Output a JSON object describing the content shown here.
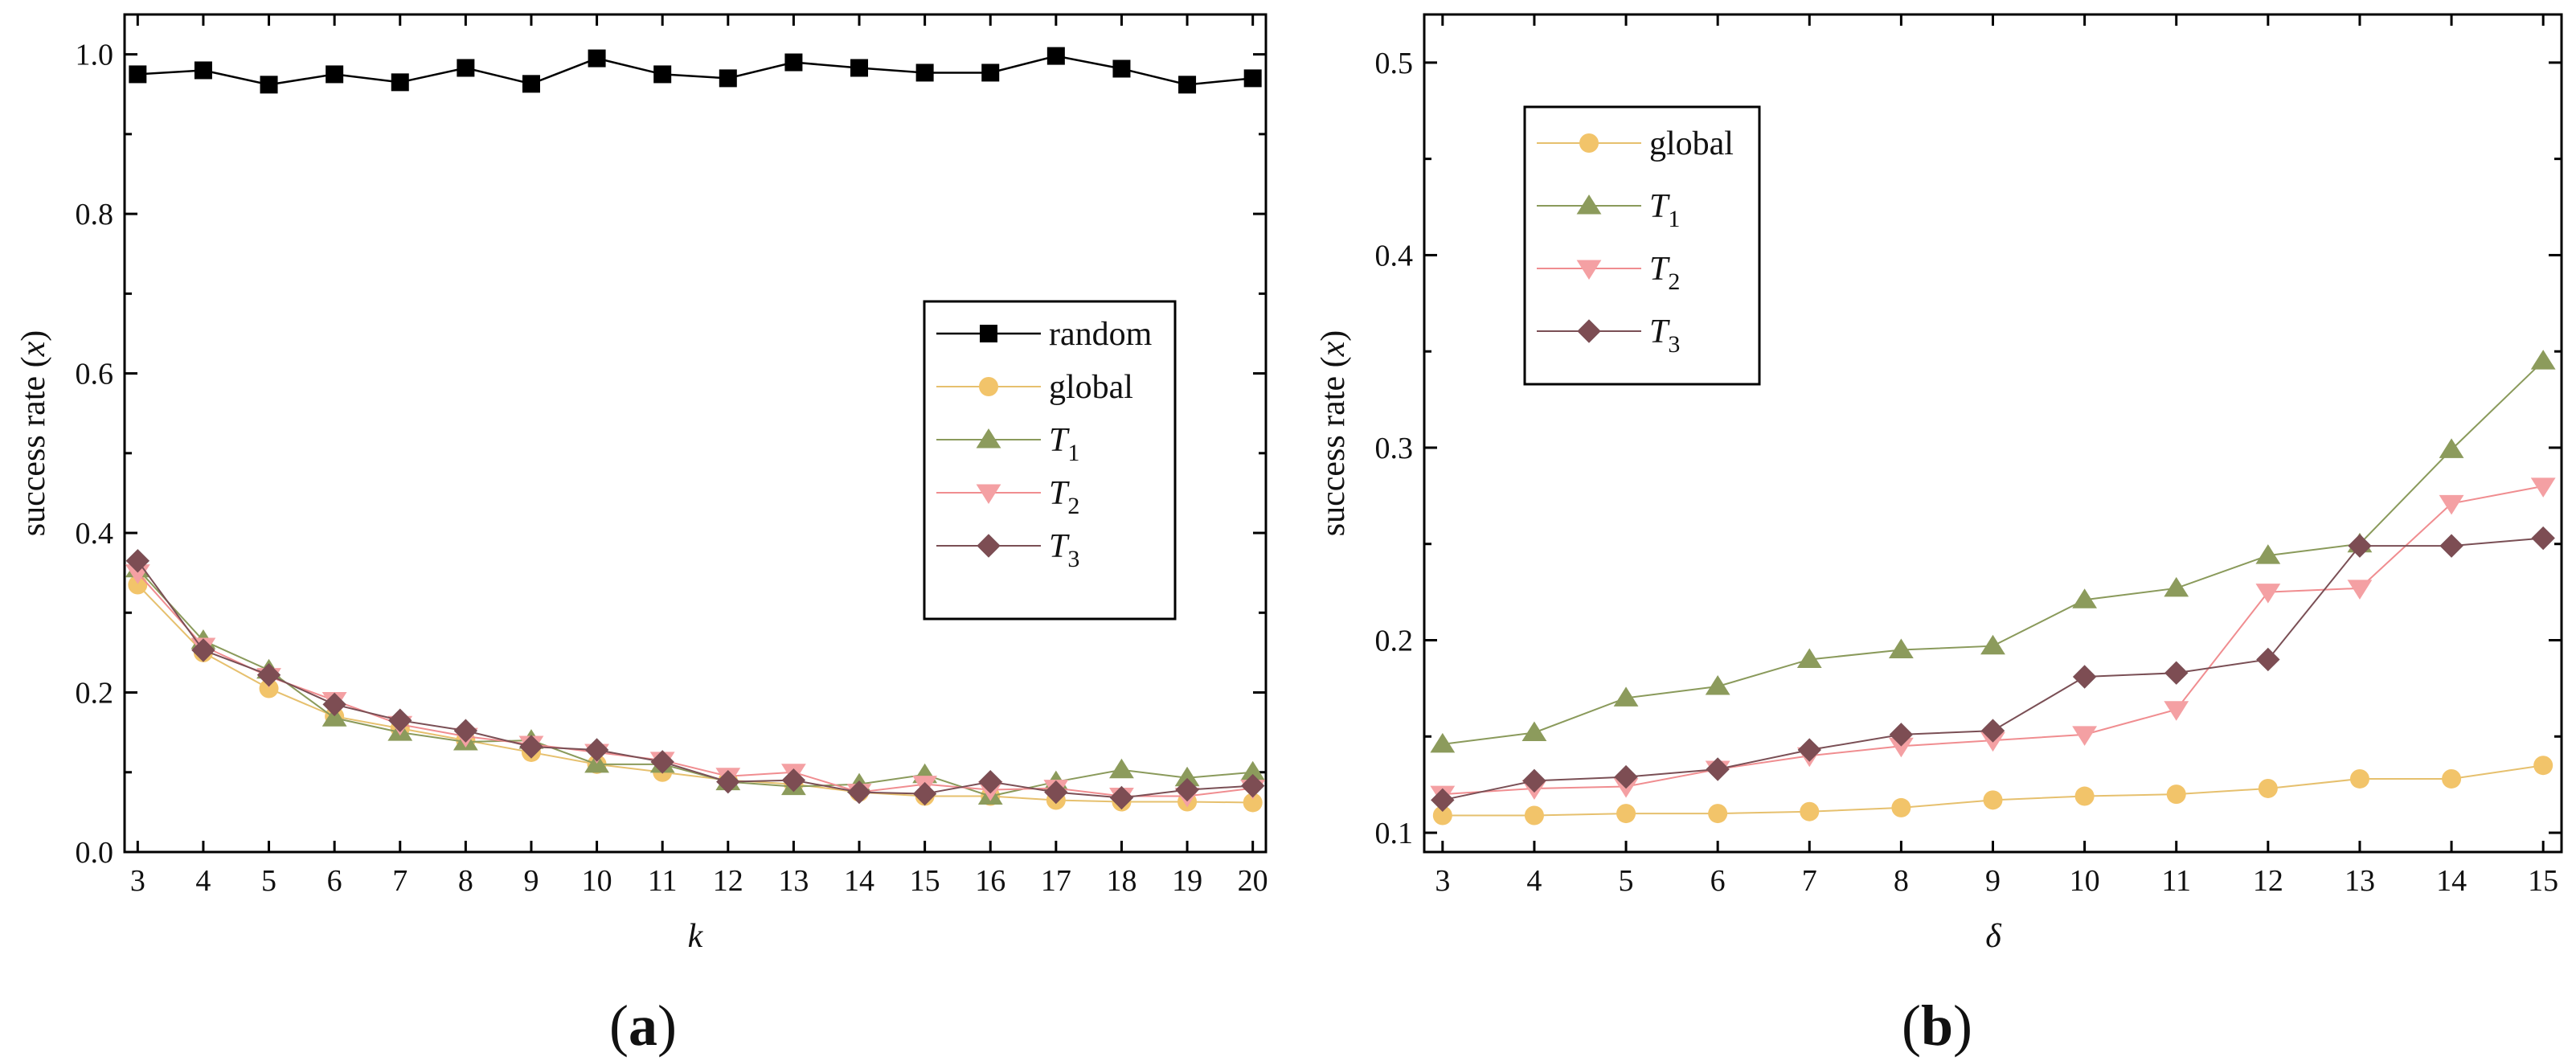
{
  "colors": {
    "random": "#000000",
    "global": "#e6c06e",
    "T1": "#8a9a5b",
    "T2": "#f08d90",
    "T3": "#7a4f55",
    "global_fill": "#f2c46a",
    "T1_fill": "#8c9b5c",
    "T2_fill": "#f4a0a3",
    "T3_fill": "#7d4d53"
  },
  "chart_data": [
    {
      "type": "line",
      "panel_label": "(a)",
      "xlabel": "k",
      "ylabel": "success rate (x)",
      "xlim": [
        2.8,
        20.2
      ],
      "ylim": [
        0.0,
        1.05
      ],
      "x": [
        3,
        4,
        5,
        6,
        7,
        8,
        9,
        10,
        11,
        12,
        13,
        14,
        15,
        16,
        17,
        18,
        19,
        20
      ],
      "xticks": [
        "3",
        "4",
        "5",
        "6",
        "7",
        "8",
        "9",
        "10",
        "11",
        "12",
        "13",
        "14",
        "15",
        "16",
        "17",
        "18",
        "19",
        "20"
      ],
      "yticks": [
        "0.0",
        "0.2",
        "0.4",
        "0.6",
        "0.8",
        "1.0"
      ],
      "ytick_values": [
        0.0,
        0.2,
        0.4,
        0.6,
        0.8,
        1.0
      ],
      "legend_position": "center-right",
      "series": [
        {
          "key": "random",
          "name": "random",
          "marker": "square",
          "values": [
            0.975,
            0.98,
            0.962,
            0.975,
            0.965,
            0.983,
            0.963,
            0.995,
            0.975,
            0.97,
            0.99,
            0.983,
            0.977,
            0.977,
            0.998,
            0.982,
            0.962,
            0.97
          ]
        },
        {
          "key": "global",
          "name": "global",
          "marker": "circle",
          "values": [
            0.335,
            0.25,
            0.205,
            0.17,
            0.155,
            0.14,
            0.125,
            0.11,
            0.1,
            0.09,
            0.085,
            0.075,
            0.07,
            0.07,
            0.065,
            0.063,
            0.063,
            0.062
          ]
        },
        {
          "key": "T1",
          "name": "T",
          "sub": "1",
          "marker": "triangle-up",
          "values": [
            0.355,
            0.265,
            0.228,
            0.168,
            0.15,
            0.138,
            0.14,
            0.11,
            0.11,
            0.088,
            0.082,
            0.085,
            0.097,
            0.07,
            0.088,
            0.103,
            0.093,
            0.1
          ]
        },
        {
          "key": "T2",
          "name": "T",
          "sub": "2",
          "marker": "triangle-down",
          "values": [
            0.35,
            0.258,
            0.22,
            0.19,
            0.16,
            0.145,
            0.135,
            0.125,
            0.115,
            0.095,
            0.1,
            0.075,
            0.085,
            0.078,
            0.08,
            0.07,
            0.07,
            0.08
          ]
        },
        {
          "key": "T3",
          "name": "T",
          "sub": "3",
          "marker": "diamond",
          "values": [
            0.365,
            0.253,
            0.222,
            0.185,
            0.165,
            0.152,
            0.132,
            0.128,
            0.113,
            0.088,
            0.09,
            0.075,
            0.073,
            0.088,
            0.075,
            0.068,
            0.078,
            0.083
          ]
        }
      ]
    },
    {
      "type": "line",
      "panel_label": "(b)",
      "xlabel": "δ",
      "ylabel": "success rate (x)",
      "xlim": [
        2.8,
        15.2
      ],
      "ylim": [
        0.09,
        0.525
      ],
      "x": [
        3,
        4,
        5,
        6,
        7,
        8,
        9,
        10,
        11,
        12,
        13,
        14,
        15
      ],
      "xticks": [
        "3",
        "4",
        "5",
        "6",
        "7",
        "8",
        "9",
        "10",
        "11",
        "12",
        "13",
        "14",
        "15"
      ],
      "yticks": [
        "0.1",
        "0.2",
        "0.3",
        "0.4",
        "0.5"
      ],
      "ytick_values": [
        0.1,
        0.2,
        0.3,
        0.4,
        0.5
      ],
      "legend_position": "top-left",
      "series": [
        {
          "key": "global",
          "name": "global",
          "marker": "circle",
          "values": [
            0.109,
            0.109,
            0.11,
            0.11,
            0.111,
            0.113,
            0.117,
            0.119,
            0.12,
            0.123,
            0.128,
            0.128,
            0.135
          ]
        },
        {
          "key": "T1",
          "name": "T",
          "sub": "1",
          "marker": "triangle-up",
          "values": [
            0.146,
            0.152,
            0.17,
            0.176,
            0.19,
            0.195,
            0.197,
            0.221,
            0.227,
            0.244,
            0.25,
            0.299,
            0.345
          ]
        },
        {
          "key": "T2",
          "name": "T",
          "sub": "2",
          "marker": "triangle-down",
          "values": [
            0.12,
            0.123,
            0.124,
            0.133,
            0.14,
            0.145,
            0.148,
            0.151,
            0.164,
            0.225,
            0.227,
            0.271,
            0.28
          ]
        },
        {
          "key": "T3",
          "name": "T",
          "sub": "3",
          "marker": "diamond",
          "values": [
            0.117,
            0.127,
            0.129,
            0.133,
            0.143,
            0.151,
            0.153,
            0.181,
            0.183,
            0.19,
            0.249,
            0.249,
            0.253
          ]
        }
      ]
    }
  ]
}
